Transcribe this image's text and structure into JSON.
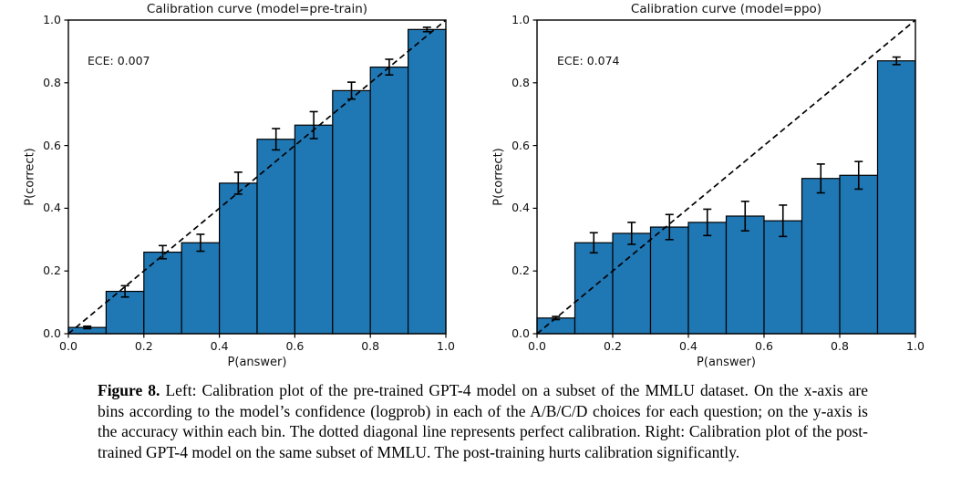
{
  "figure": {
    "caption_label": "Figure 8.",
    "caption_text": "Left: Calibration plot of the pre-trained GPT-4 model on a subset of the MMLU dataset. On the x-axis are bins according to the model’s confidence (logprob) in each of the A/B/C/D choices for each question; on the y-axis is the accuracy within each bin. The dotted diagonal line represents perfect calibration. Right: Calibration plot of the post-trained GPT-4 model on the same subset of MMLU. The post-training hurts calibration significantly."
  },
  "colors": {
    "background": "#ffffff",
    "bar_fill": "#1f77b4",
    "bar_edge": "#000000",
    "diagonal": "#000000",
    "axis": "#000000"
  },
  "chart_data": [
    {
      "type": "bar",
      "title": "Calibration curve (model=pre-train)",
      "annotation": "ECE: 0.007",
      "xlabel": "P(answer)",
      "ylabel": "P(correct)",
      "xlim": [
        0.0,
        1.0
      ],
      "ylim": [
        0.0,
        1.0
      ],
      "grid": false,
      "x_ticks": [
        "0.0",
        "0.2",
        "0.4",
        "0.6",
        "0.8",
        "1.0"
      ],
      "y_ticks": [
        "0.0",
        "0.2",
        "0.4",
        "0.6",
        "0.8",
        "1.0"
      ],
      "bin_width": 0.1,
      "bin_centers": [
        0.05,
        0.15,
        0.25,
        0.35,
        0.45,
        0.55,
        0.65,
        0.75,
        0.85,
        0.95
      ],
      "values": [
        0.02,
        0.135,
        0.26,
        0.29,
        0.48,
        0.62,
        0.665,
        0.775,
        0.85,
        0.97
      ],
      "errors": [
        0.004,
        0.018,
        0.021,
        0.027,
        0.035,
        0.034,
        0.043,
        0.027,
        0.025,
        0.007
      ],
      "diagonal_line": "perfect calibration (y = x), dashed"
    },
    {
      "type": "bar",
      "title": "Calibration curve (model=ppo)",
      "annotation": "ECE: 0.074",
      "xlabel": "P(answer)",
      "ylabel": "P(correct)",
      "xlim": [
        0.0,
        1.0
      ],
      "ylim": [
        0.0,
        1.0
      ],
      "grid": false,
      "x_ticks": [
        "0.0",
        "0.2",
        "0.4",
        "0.6",
        "0.8",
        "1.0"
      ],
      "y_ticks": [
        "0.0",
        "0.2",
        "0.4",
        "0.6",
        "0.8",
        "1.0"
      ],
      "bin_width": 0.1,
      "bin_centers": [
        0.05,
        0.15,
        0.25,
        0.35,
        0.45,
        0.55,
        0.65,
        0.75,
        0.85,
        0.95
      ],
      "values": [
        0.05,
        0.29,
        0.32,
        0.34,
        0.355,
        0.375,
        0.36,
        0.495,
        0.505,
        0.87
      ],
      "errors": [
        0.005,
        0.032,
        0.035,
        0.04,
        0.042,
        0.047,
        0.05,
        0.046,
        0.044,
        0.012
      ],
      "diagonal_line": "perfect calibration (y = x), dashed"
    }
  ]
}
